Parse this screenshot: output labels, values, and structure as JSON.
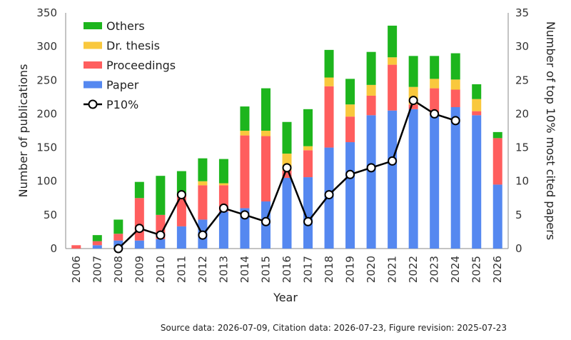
{
  "chart_data": {
    "type": "bar",
    "stacked": true,
    "categories": [
      "2006",
      "2007",
      "2008",
      "2009",
      "2010",
      "2011",
      "2012",
      "2013",
      "2014",
      "2015",
      "2016",
      "2017",
      "2018",
      "2019",
      "2020",
      "2021",
      "2022",
      "2023",
      "2024",
      "2025",
      "2026"
    ],
    "series": [
      {
        "name": "Paper",
        "color": "#5588f0",
        "values": [
          0,
          5,
          12,
          12,
          14,
          33,
          43,
          55,
          60,
          70,
          105,
          106,
          150,
          158,
          198,
          205,
          207,
          198,
          210,
          198,
          95
        ]
      },
      {
        "name": "Proceedings",
        "color": "#ff5e5e",
        "values": [
          5,
          6,
          10,
          63,
          36,
          47,
          51,
          39,
          108,
          97,
          11,
          40,
          91,
          38,
          29,
          68,
          7,
          40,
          26,
          6,
          69
        ]
      },
      {
        "name": "Dr. thesis",
        "color": "#f9c83d",
        "values": [
          0,
          0,
          0,
          0,
          0,
          0,
          6,
          3,
          7,
          8,
          25,
          6,
          13,
          18,
          16,
          11,
          26,
          14,
          15,
          18,
          0
        ]
      },
      {
        "name": "Others",
        "color": "#1db51d",
        "values": [
          0,
          9,
          21,
          24,
          58,
          35,
          34,
          36,
          36,
          63,
          47,
          55,
          41,
          38,
          49,
          47,
          46,
          34,
          39,
          22,
          9
        ]
      }
    ],
    "line_series": {
      "name": "P10%",
      "values": [
        null,
        null,
        0,
        3,
        2,
        8,
        2,
        6,
        5,
        4,
        12,
        4,
        8,
        11,
        12,
        13,
        22,
        20,
        19,
        null,
        null
      ]
    },
    "xlabel": "Year",
    "ylabel": "Number of publications",
    "y2label": "Number of top 10% most cited papers",
    "ylim": [
      0,
      350
    ],
    "y2lim": [
      0,
      35
    ],
    "yticks": [
      0,
      50,
      100,
      150,
      200,
      250,
      300,
      350
    ],
    "y2ticks": [
      0,
      5,
      10,
      15,
      20,
      25,
      30,
      35
    ],
    "legend_order": [
      "Others",
      "Dr. thesis",
      "Proceedings",
      "Paper",
      "P10%"
    ],
    "legend_position": "top-left",
    "grid": false
  },
  "footer": "Source data: 2026-07-09, Citation data: 2026-07-23, Figure revision: 2025-07-23"
}
